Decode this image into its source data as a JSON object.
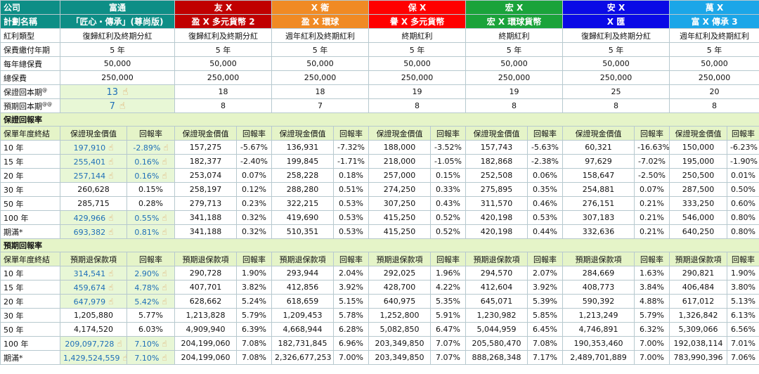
{
  "header": {
    "company_label": "公司",
    "plan_label": "計劃名稱",
    "companies": [
      "富通",
      "友 X",
      "X 衛",
      "保 X",
      "宏 X",
      "安 X",
      "萬 X"
    ],
    "plans": [
      "「匠心・傳承」(尊尚版)",
      "盈 X 多元貨幣 2",
      "盈 X 環球",
      "譽 X 多元貨幣",
      "宏 X 環球貨幣",
      "X 匯",
      "富 X 傳承 3"
    ],
    "colors": [
      "#0d8e86",
      "#c00000",
      "#f08a24",
      "#ff0000",
      "#1aa33a",
      "#0a0ae6",
      "#1ba6e8"
    ]
  },
  "info": [
    {
      "label": "紅利類型",
      "values": [
        "復歸紅利及終期分紅",
        "復歸紅利及終期分紅",
        "週年紅利及終期紅利",
        "終期紅利",
        "終期紅利",
        "復歸紅利及終期分紅",
        "週年紅利及終期紅利"
      ]
    },
    {
      "label": "保費繳付年期",
      "values": [
        "5 年",
        "5 年",
        "5 年",
        "5 年",
        "5 年",
        "5 年",
        "5 年"
      ]
    },
    {
      "label": "每年總保費",
      "values": [
        "50,000",
        "50,000",
        "50,000",
        "50,000",
        "50,000",
        "50,000",
        "50,000"
      ]
    },
    {
      "label": "總保費",
      "values": [
        "250,000",
        "250,000",
        "250,000",
        "250,000",
        "250,000",
        "250,000",
        "250,000"
      ]
    },
    {
      "label": "保證回本期",
      "sup": "@",
      "values": [
        "13",
        "18",
        "18",
        "19",
        "19",
        "25",
        "20"
      ]
    },
    {
      "label": "預期回本期",
      "sup": "@@",
      "values": [
        "7",
        "8",
        "7",
        "8",
        "8",
        "8",
        "8"
      ]
    }
  ],
  "guaranteed": {
    "section_title": "保證回報率",
    "col_year": "保單年度終結",
    "col_value": "保證現金價值",
    "col_rate": "回報率",
    "rows": [
      {
        "year": "10 年",
        "cells": [
          [
            "197,910",
            "-2.89%"
          ],
          [
            "157,275",
            "-5.67%"
          ],
          [
            "136,931",
            "-7.32%"
          ],
          [
            "188,000",
            "-3.52%"
          ],
          [
            "157,743",
            "-5.63%"
          ],
          [
            "60,321",
            "-16.63%"
          ],
          [
            "150,000",
            "-6.23%"
          ]
        ],
        "hl": true
      },
      {
        "year": "15 年",
        "cells": [
          [
            "255,401",
            "0.16%"
          ],
          [
            "182,377",
            "-2.40%"
          ],
          [
            "199,845",
            "-1.71%"
          ],
          [
            "218,000",
            "-1.05%"
          ],
          [
            "182,868",
            "-2.38%"
          ],
          [
            "97,629",
            "-7.02%"
          ],
          [
            "195,000",
            "-1.90%"
          ]
        ],
        "hl": true
      },
      {
        "year": "20 年",
        "cells": [
          [
            "257,144",
            "0.16%"
          ],
          [
            "253,074",
            "0.07%"
          ],
          [
            "258,228",
            "0.18%"
          ],
          [
            "257,000",
            "0.15%"
          ],
          [
            "252,508",
            "0.06%"
          ],
          [
            "158,647",
            "-2.50%"
          ],
          [
            "250,500",
            "0.01%"
          ]
        ],
        "hl": true
      },
      {
        "year": "30 年",
        "cells": [
          [
            "260,628",
            "0.15%"
          ],
          [
            "258,197",
            "0.12%"
          ],
          [
            "288,280",
            "0.51%"
          ],
          [
            "274,250",
            "0.33%"
          ],
          [
            "275,895",
            "0.35%"
          ],
          [
            "254,881",
            "0.07%"
          ],
          [
            "287,500",
            "0.50%"
          ]
        ],
        "hl": false
      },
      {
        "year": "50 年",
        "cells": [
          [
            "285,715",
            "0.28%"
          ],
          [
            "279,713",
            "0.23%"
          ],
          [
            "322,215",
            "0.53%"
          ],
          [
            "307,250",
            "0.43%"
          ],
          [
            "311,570",
            "0.46%"
          ],
          [
            "276,151",
            "0.21%"
          ],
          [
            "333,250",
            "0.60%"
          ]
        ],
        "hl": false
      },
      {
        "year": "100 年",
        "cells": [
          [
            "429,966",
            "0.55%"
          ],
          [
            "341,188",
            "0.32%"
          ],
          [
            "419,690",
            "0.53%"
          ],
          [
            "415,250",
            "0.52%"
          ],
          [
            "420,198",
            "0.53%"
          ],
          [
            "307,183",
            "0.21%"
          ],
          [
            "546,000",
            "0.80%"
          ]
        ],
        "hl": true
      },
      {
        "year": "期滿*",
        "cells": [
          [
            "693,382",
            "0.81%"
          ],
          [
            "341,188",
            "0.32%"
          ],
          [
            "510,351",
            "0.53%"
          ],
          [
            "415,250",
            "0.52%"
          ],
          [
            "420,198",
            "0.44%"
          ],
          [
            "332,636",
            "0.21%"
          ],
          [
            "640,250",
            "0.80%"
          ]
        ],
        "hl": true
      }
    ]
  },
  "expected": {
    "section_title": "預期回報率",
    "col_year": "保單年度終結",
    "col_value": "預期退保款項",
    "col_rate": "回報率",
    "rows": [
      {
        "year": "10 年",
        "cells": [
          [
            "314,541",
            "2.90%"
          ],
          [
            "290,728",
            "1.90%"
          ],
          [
            "293,944",
            "2.04%"
          ],
          [
            "292,025",
            "1.96%"
          ],
          [
            "294,570",
            "2.07%"
          ],
          [
            "284,669",
            "1.63%"
          ],
          [
            "290,821",
            "1.90%"
          ]
        ],
        "hl": true
      },
      {
        "year": "15 年",
        "cells": [
          [
            "459,674",
            "4.78%"
          ],
          [
            "407,701",
            "3.82%"
          ],
          [
            "412,856",
            "3.92%"
          ],
          [
            "428,700",
            "4.22%"
          ],
          [
            "412,604",
            "3.92%"
          ],
          [
            "408,773",
            "3.84%"
          ],
          [
            "406,484",
            "3.80%"
          ]
        ],
        "hl": true
      },
      {
        "year": "20 年",
        "cells": [
          [
            "647,979",
            "5.42%"
          ],
          [
            "628,662",
            "5.24%"
          ],
          [
            "618,659",
            "5.15%"
          ],
          [
            "640,975",
            "5.35%"
          ],
          [
            "645,071",
            "5.39%"
          ],
          [
            "590,392",
            "4.88%"
          ],
          [
            "617,012",
            "5.13%"
          ]
        ],
        "hl": true
      },
      {
        "year": "30 年",
        "cells": [
          [
            "1,205,880",
            "5.77%"
          ],
          [
            "1,213,828",
            "5.79%"
          ],
          [
            "1,209,453",
            "5.78%"
          ],
          [
            "1,252,800",
            "5.91%"
          ],
          [
            "1,230,982",
            "5.85%"
          ],
          [
            "1,213,249",
            "5.79%"
          ],
          [
            "1,326,842",
            "6.13%"
          ]
        ],
        "hl": false
      },
      {
        "year": "50 年",
        "cells": [
          [
            "4,174,520",
            "6.03%"
          ],
          [
            "4,909,940",
            "6.39%"
          ],
          [
            "4,668,944",
            "6.28%"
          ],
          [
            "5,082,850",
            "6.47%"
          ],
          [
            "5,044,959",
            "6.45%"
          ],
          [
            "4,746,891",
            "6.32%"
          ],
          [
            "5,309,066",
            "6.56%"
          ]
        ],
        "hl": false
      },
      {
        "year": "100 年",
        "cells": [
          [
            "209,097,728",
            "7.10%"
          ],
          [
            "204,199,060",
            "7.08%"
          ],
          [
            "182,731,845",
            "6.96%"
          ],
          [
            "203,349,850",
            "7.07%"
          ],
          [
            "205,580,470",
            "7.08%"
          ],
          [
            "190,353,460",
            "7.00%"
          ],
          [
            "192,038,114",
            "7.01%"
          ]
        ],
        "hl": true
      },
      {
        "year": "期滿*",
        "cells": [
          [
            "1,429,524,559",
            "7.10%"
          ],
          [
            "204,199,060",
            "7.08%"
          ],
          [
            "2,326,677,253",
            "7.00%"
          ],
          [
            "203,349,850",
            "7.07%"
          ],
          [
            "888,268,348",
            "7.17%"
          ],
          [
            "2,489,701,889",
            "7.00%"
          ],
          [
            "783,990,396",
            "7.06%"
          ]
        ],
        "hl": true
      }
    ]
  }
}
